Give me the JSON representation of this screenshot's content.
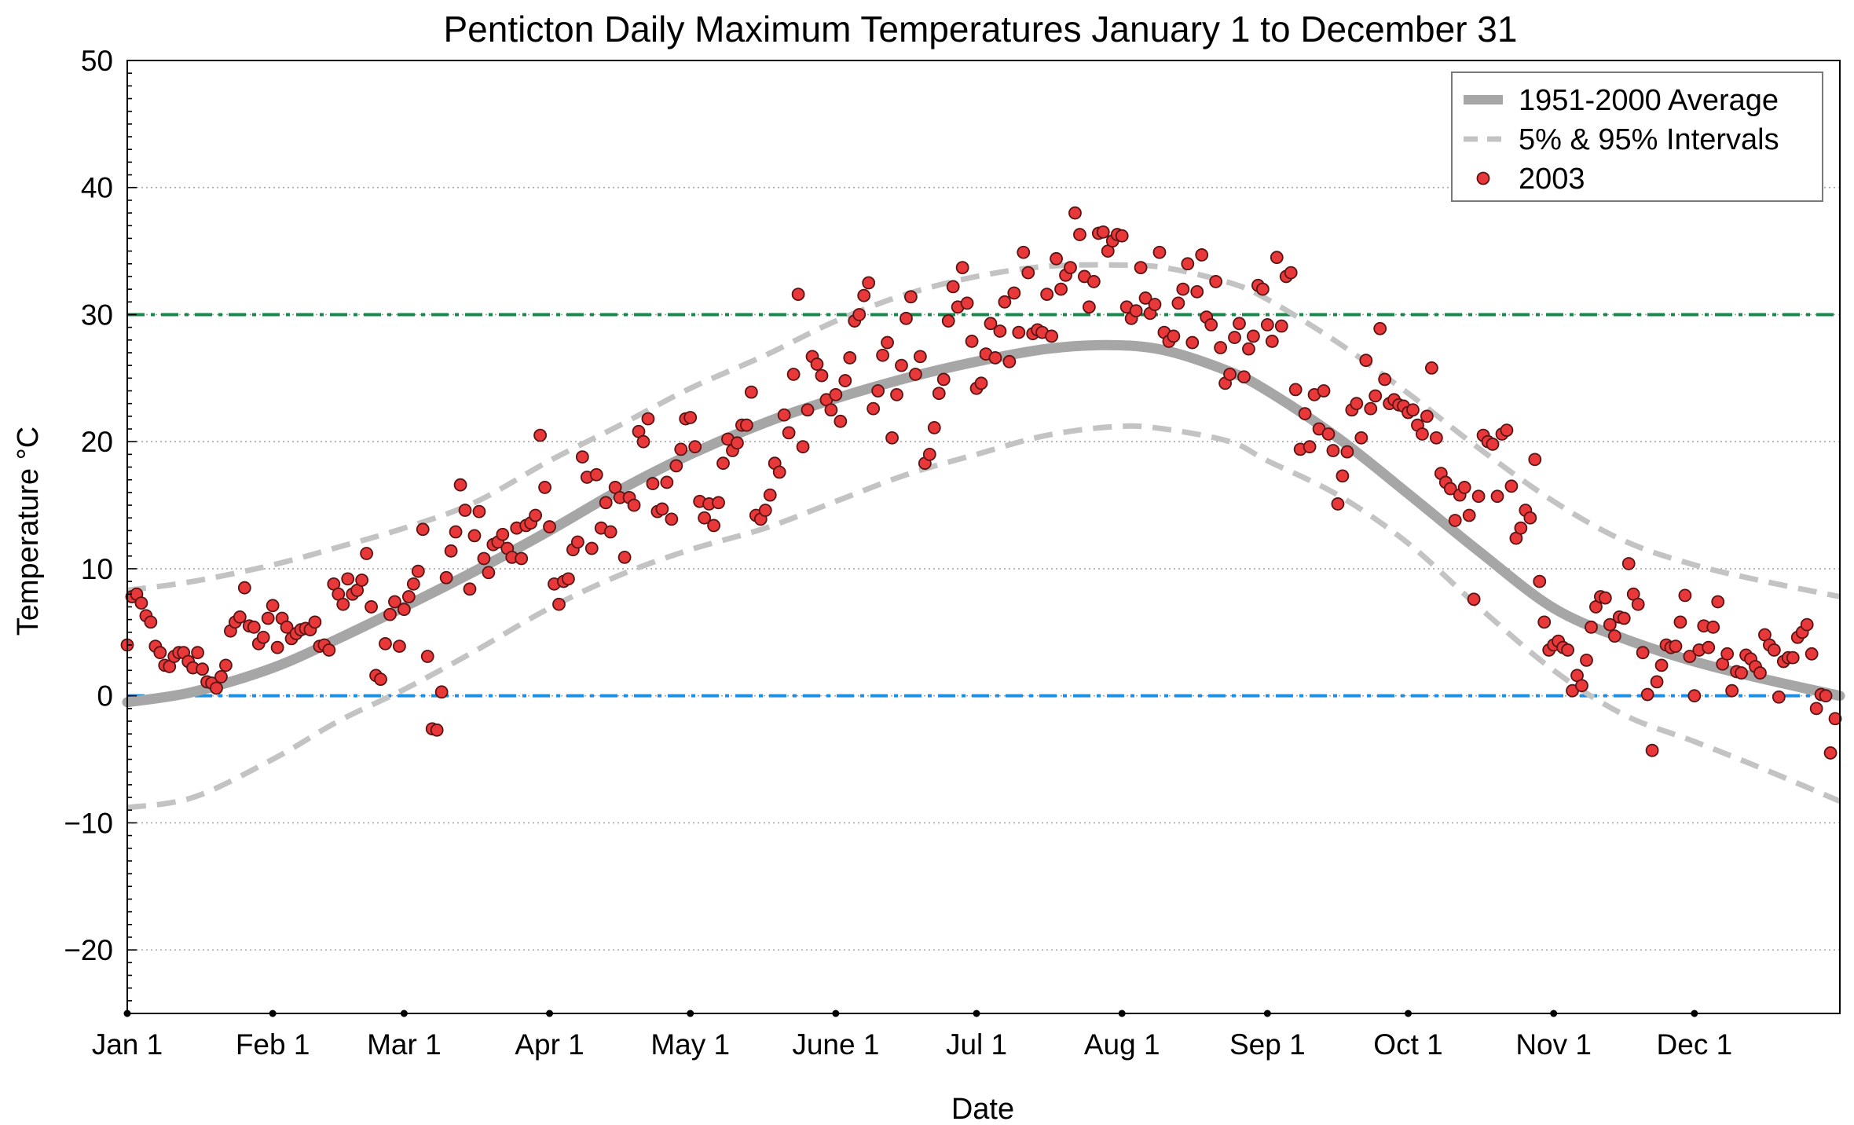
{
  "chart_data": {
    "type": "line",
    "title": "Penticton Daily Maximum Temperatures January 1 to December 31",
    "xlabel": "Date",
    "ylabel": "Temperature °C",
    "xlim": [
      1,
      366
    ],
    "ylim": [
      -25,
      50
    ],
    "x_tick_days": [
      1,
      32,
      60,
      91,
      121,
      152,
      182,
      213,
      244,
      274,
      305,
      335
    ],
    "x_tick_labels": [
      "Jan 1",
      "Feb 1",
      "Mar 1",
      "Apr 1",
      "May 1",
      "June 1",
      "Jul 1",
      "Aug 1",
      "Sep 1",
      "Oct 1",
      "Nov 1",
      "Dec 1"
    ],
    "y_ticks": [
      -20,
      -10,
      0,
      10,
      20,
      30,
      40,
      50
    ],
    "y_tick_labels": [
      "−20",
      "−10",
      "0",
      "10",
      "20",
      "30",
      "40",
      "50"
    ],
    "grid": "horizontal dotted at major y ticks",
    "legend_position": "top-right",
    "reference_lines": [
      {
        "y": 30,
        "color": "#138a4a",
        "style": "dash-dot"
      },
      {
        "y": 0,
        "color": "#1a8fe3",
        "style": "dash-dot"
      }
    ],
    "series": [
      {
        "name": "1951-2000 Average",
        "style": "thick-solid",
        "color": "#a6a6a6",
        "x": [
          1,
          15,
          32,
          46,
          60,
          75,
          91,
          106,
          121,
          137,
          152,
          167,
          182,
          197,
          210,
          222,
          236,
          244,
          259,
          274,
          289,
          305,
          320,
          335,
          350,
          366
        ],
        "y": [
          -0.5,
          0.3,
          2.2,
          4.5,
          7.0,
          9.8,
          13.0,
          16.2,
          19.0,
          21.5,
          23.4,
          25.0,
          26.3,
          27.3,
          27.6,
          27.2,
          25.5,
          24.0,
          20.3,
          15.9,
          11.4,
          6.9,
          4.5,
          2.7,
          1.3,
          0.0
        ]
      },
      {
        "name": "5% & 95% Intervals",
        "style": "dashed",
        "color": "#c3c3c3",
        "x": [
          1,
          15,
          32,
          46,
          60,
          75,
          91,
          106,
          121,
          137,
          152,
          167,
          182,
          197,
          212,
          222,
          236,
          244,
          259,
          274,
          289,
          305,
          320,
          335,
          350,
          366
        ],
        "y": [
          8.3,
          9.0,
          10.3,
          11.7,
          13.2,
          15.2,
          18.5,
          21.3,
          24.2,
          26.8,
          29.5,
          31.6,
          33.0,
          33.8,
          33.9,
          33.7,
          32.5,
          31.2,
          27.8,
          23.8,
          19.5,
          15.3,
          12.2,
          10.3,
          9.0,
          7.8
        ]
      },
      {
        "style": "dashed",
        "color": "#c3c3c3",
        "x": [
          1,
          15,
          32,
          46,
          60,
          75,
          91,
          106,
          121,
          137,
          152,
          167,
          182,
          197,
          212,
          222,
          236,
          244,
          259,
          274,
          289,
          305,
          320,
          335,
          350,
          366
        ],
        "y": [
          -8.8,
          -8.0,
          -5.0,
          -2.0,
          0.5,
          3.5,
          6.9,
          9.5,
          11.5,
          13.2,
          15.3,
          17.4,
          19.0,
          20.5,
          21.2,
          21.0,
          20.0,
          18.5,
          15.8,
          12.0,
          7.0,
          2.0,
          -1.5,
          -3.6,
          -5.8,
          -8.3
        ]
      },
      {
        "name": "2003",
        "style": "markers",
        "color": "#e8383a",
        "x": [
          1,
          2,
          3,
          4,
          5,
          6,
          7,
          8,
          9,
          10,
          11,
          12,
          13,
          14,
          15,
          16,
          17,
          18,
          19,
          20,
          21,
          22,
          23,
          24,
          25,
          26,
          27,
          28,
          29,
          30,
          31,
          32,
          33,
          34,
          35,
          36,
          37,
          38,
          39,
          40,
          41,
          42,
          43,
          44,
          45,
          46,
          47,
          48,
          49,
          50,
          51,
          52,
          53,
          54,
          55,
          56,
          57,
          58,
          59,
          60,
          61,
          62,
          63,
          64,
          65,
          66,
          67,
          68,
          69,
          70,
          71,
          72,
          73,
          74,
          75,
          76,
          77,
          78,
          79,
          80,
          81,
          82,
          83,
          84,
          85,
          86,
          87,
          88,
          89,
          90,
          91,
          92,
          93,
          94,
          95,
          96,
          97,
          98,
          99,
          100,
          101,
          102,
          103,
          104,
          105,
          106,
          107,
          108,
          109,
          110,
          111,
          112,
          113,
          114,
          115,
          116,
          117,
          118,
          119,
          120,
          121,
          122,
          123,
          124,
          125,
          126,
          127,
          128,
          129,
          130,
          131,
          132,
          133,
          134,
          135,
          136,
          137,
          138,
          139,
          140,
          141,
          142,
          143,
          144,
          145,
          146,
          147,
          148,
          149,
          150,
          151,
          152,
          153,
          154,
          155,
          156,
          157,
          158,
          159,
          160,
          161,
          162,
          163,
          164,
          165,
          166,
          167,
          168,
          169,
          170,
          171,
          172,
          173,
          174,
          175,
          176,
          177,
          178,
          179,
          180,
          181,
          182,
          183,
          184,
          185,
          186,
          187,
          188,
          189,
          190,
          191,
          192,
          193,
          194,
          195,
          196,
          197,
          198,
          199,
          200,
          201,
          202,
          203,
          204,
          205,
          206,
          207,
          208,
          209,
          210,
          211,
          212,
          213,
          214,
          215,
          216,
          217,
          218,
          219,
          220,
          221,
          222,
          223,
          224,
          225,
          226,
          227,
          228,
          229,
          230,
          231,
          232,
          233,
          234,
          235,
          236,
          237,
          238,
          239,
          240,
          241,
          242,
          243,
          244,
          245,
          246,
          247,
          248,
          249,
          250,
          251,
          252,
          253,
          254,
          255,
          256,
          257,
          258,
          259,
          260,
          261,
          262,
          263,
          264,
          265,
          266,
          267,
          268,
          269,
          270,
          271,
          272,
          273,
          274,
          275,
          276,
          277,
          278,
          279,
          280,
          281,
          282,
          283,
          284,
          285,
          286,
          287,
          288,
          289,
          290,
          291,
          292,
          293,
          294,
          295,
          296,
          297,
          298,
          299,
          300,
          301,
          302,
          303,
          304,
          305,
          306,
          307,
          308,
          309,
          310,
          311,
          312,
          313,
          314,
          315,
          316,
          317,
          318,
          319,
          320,
          321,
          322,
          323,
          324,
          325,
          326,
          327,
          328,
          329,
          330,
          331,
          332,
          333,
          334,
          335,
          336,
          337,
          338,
          339,
          340,
          341,
          342,
          343,
          344,
          345,
          346,
          347,
          348,
          349,
          350,
          351,
          352,
          353,
          354,
          355,
          356,
          357,
          358,
          359,
          360,
          361,
          362,
          363,
          364,
          365
        ],
        "y": [
          4.0,
          7.8,
          8.0,
          7.3,
          6.3,
          5.8,
          3.9,
          3.4,
          2.4,
          2.3,
          3.1,
          3.4,
          3.4,
          2.7,
          2.2,
          3.4,
          2.1,
          1.1,
          1.0,
          0.6,
          1.5,
          2.4,
          5.1,
          5.8,
          6.2,
          8.5,
          5.5,
          5.4,
          4.1,
          4.6,
          6.1,
          7.1,
          3.8,
          6.1,
          5.4,
          4.5,
          4.9,
          5.2,
          5.3,
          5.2,
          5.8,
          3.9,
          4.0,
          3.6,
          8.8,
          8.0,
          7.2,
          9.2,
          8.0,
          8.3,
          9.1,
          11.2,
          7.0,
          1.6,
          1.3,
          4.1,
          6.4,
          7.4,
          3.9,
          6.8,
          7.8,
          8.8,
          9.8,
          13.1,
          3.1,
          -2.6,
          -2.7,
          0.3,
          9.3,
          11.4,
          12.9,
          16.6,
          14.6,
          8.4,
          12.6,
          14.5,
          10.8,
          9.7,
          11.9,
          12.1,
          12.7,
          11.6,
          10.9,
          13.2,
          10.8,
          13.4,
          13.6,
          14.2,
          20.5,
          16.4,
          13.3,
          8.8,
          7.2,
          9.0,
          9.2,
          11.5,
          12.1,
          18.8,
          17.2,
          11.6,
          17.4,
          13.2,
          15.2,
          12.9,
          16.4,
          15.6,
          10.9,
          15.6,
          15.0,
          20.8,
          20.0,
          21.8,
          16.7,
          14.5,
          14.7,
          16.8,
          13.9,
          18.1,
          19.4,
          21.8,
          21.9,
          19.6,
          15.3,
          14.0,
          15.1,
          13.4,
          15.2,
          18.3,
          20.2,
          19.3,
          19.9,
          21.3,
          21.3,
          23.9,
          14.2,
          13.9,
          14.6,
          15.8,
          18.3,
          17.6,
          22.1,
          20.7,
          25.3,
          31.6,
          19.6,
          22.5,
          26.7,
          26.1,
          25.2,
          23.3,
          22.5,
          23.7,
          21.6,
          24.8,
          26.6,
          29.5,
          30.0,
          31.5,
          32.5,
          22.6,
          24.0,
          26.8,
          27.8,
          20.3,
          23.7,
          26.0,
          29.7,
          31.4,
          25.3,
          26.7,
          18.3,
          19.0,
          21.1,
          23.8,
          24.9,
          29.5,
          32.2,
          30.6,
          33.7,
          30.9,
          27.9,
          24.2,
          24.6,
          26.9,
          29.3,
          26.6,
          28.7,
          31.0,
          26.3,
          31.7,
          28.6,
          34.9,
          33.3,
          28.5,
          28.8,
          28.6,
          31.6,
          28.3,
          34.4,
          32.0,
          33.1,
          33.7,
          38.0,
          36.3,
          33.0,
          30.6,
          32.6,
          36.4,
          36.5,
          35.0,
          35.8,
          36.3,
          36.2,
          30.6,
          29.7,
          30.3,
          33.7,
          31.3,
          30.1,
          30.8,
          34.9,
          28.6,
          27.9,
          28.3,
          30.9,
          32.0,
          34.0,
          27.8,
          31.8,
          34.7,
          29.8,
          29.2,
          32.6,
          27.4,
          24.6,
          25.3,
          28.2,
          29.3,
          25.1,
          27.3,
          28.3,
          32.3,
          32.0,
          29.2,
          27.9,
          34.5,
          29.1,
          33.0,
          33.3,
          24.1,
          19.4,
          22.2,
          19.6,
          23.7,
          21.0,
          24.0,
          20.6,
          19.3,
          15.1,
          17.3,
          19.2,
          22.5,
          23.0,
          20.3,
          26.4,
          22.6,
          23.6,
          28.9,
          24.9,
          23.0,
          23.3,
          22.9,
          22.8,
          22.3,
          22.5,
          21.3,
          20.6,
          22.0,
          25.8,
          20.3,
          17.5,
          16.8,
          16.3,
          13.8,
          15.8,
          16.4,
          14.2,
          7.6,
          15.7,
          20.5,
          20.0,
          19.8,
          15.7,
          20.6,
          20.9,
          16.5,
          12.4,
          13.2,
          14.6,
          14.0,
          18.6,
          9.0,
          5.8,
          3.6,
          4.0,
          4.3,
          3.8,
          3.6,
          0.4,
          1.6,
          0.8,
          2.8,
          5.4,
          7.0,
          7.8,
          7.7,
          5.6,
          4.7,
          6.2,
          6.1,
          10.4,
          8.0,
          7.2,
          3.4,
          0.1,
          -4.3,
          1.1,
          2.4,
          4.0,
          3.8,
          3.9,
          5.8,
          7.9,
          3.1,
          0.0,
          3.6,
          5.5,
          3.8,
          5.4,
          7.4,
          2.5,
          3.3,
          0.4,
          1.9,
          1.8,
          3.2,
          2.9,
          2.3,
          1.8,
          4.8,
          4.0,
          3.6,
          -0.1,
          2.7,
          3.0,
          3.0,
          4.6,
          5.0,
          5.6,
          3.3,
          -1.0,
          0.1,
          0.0,
          -4.5,
          -1.8
        ]
      }
    ]
  }
}
